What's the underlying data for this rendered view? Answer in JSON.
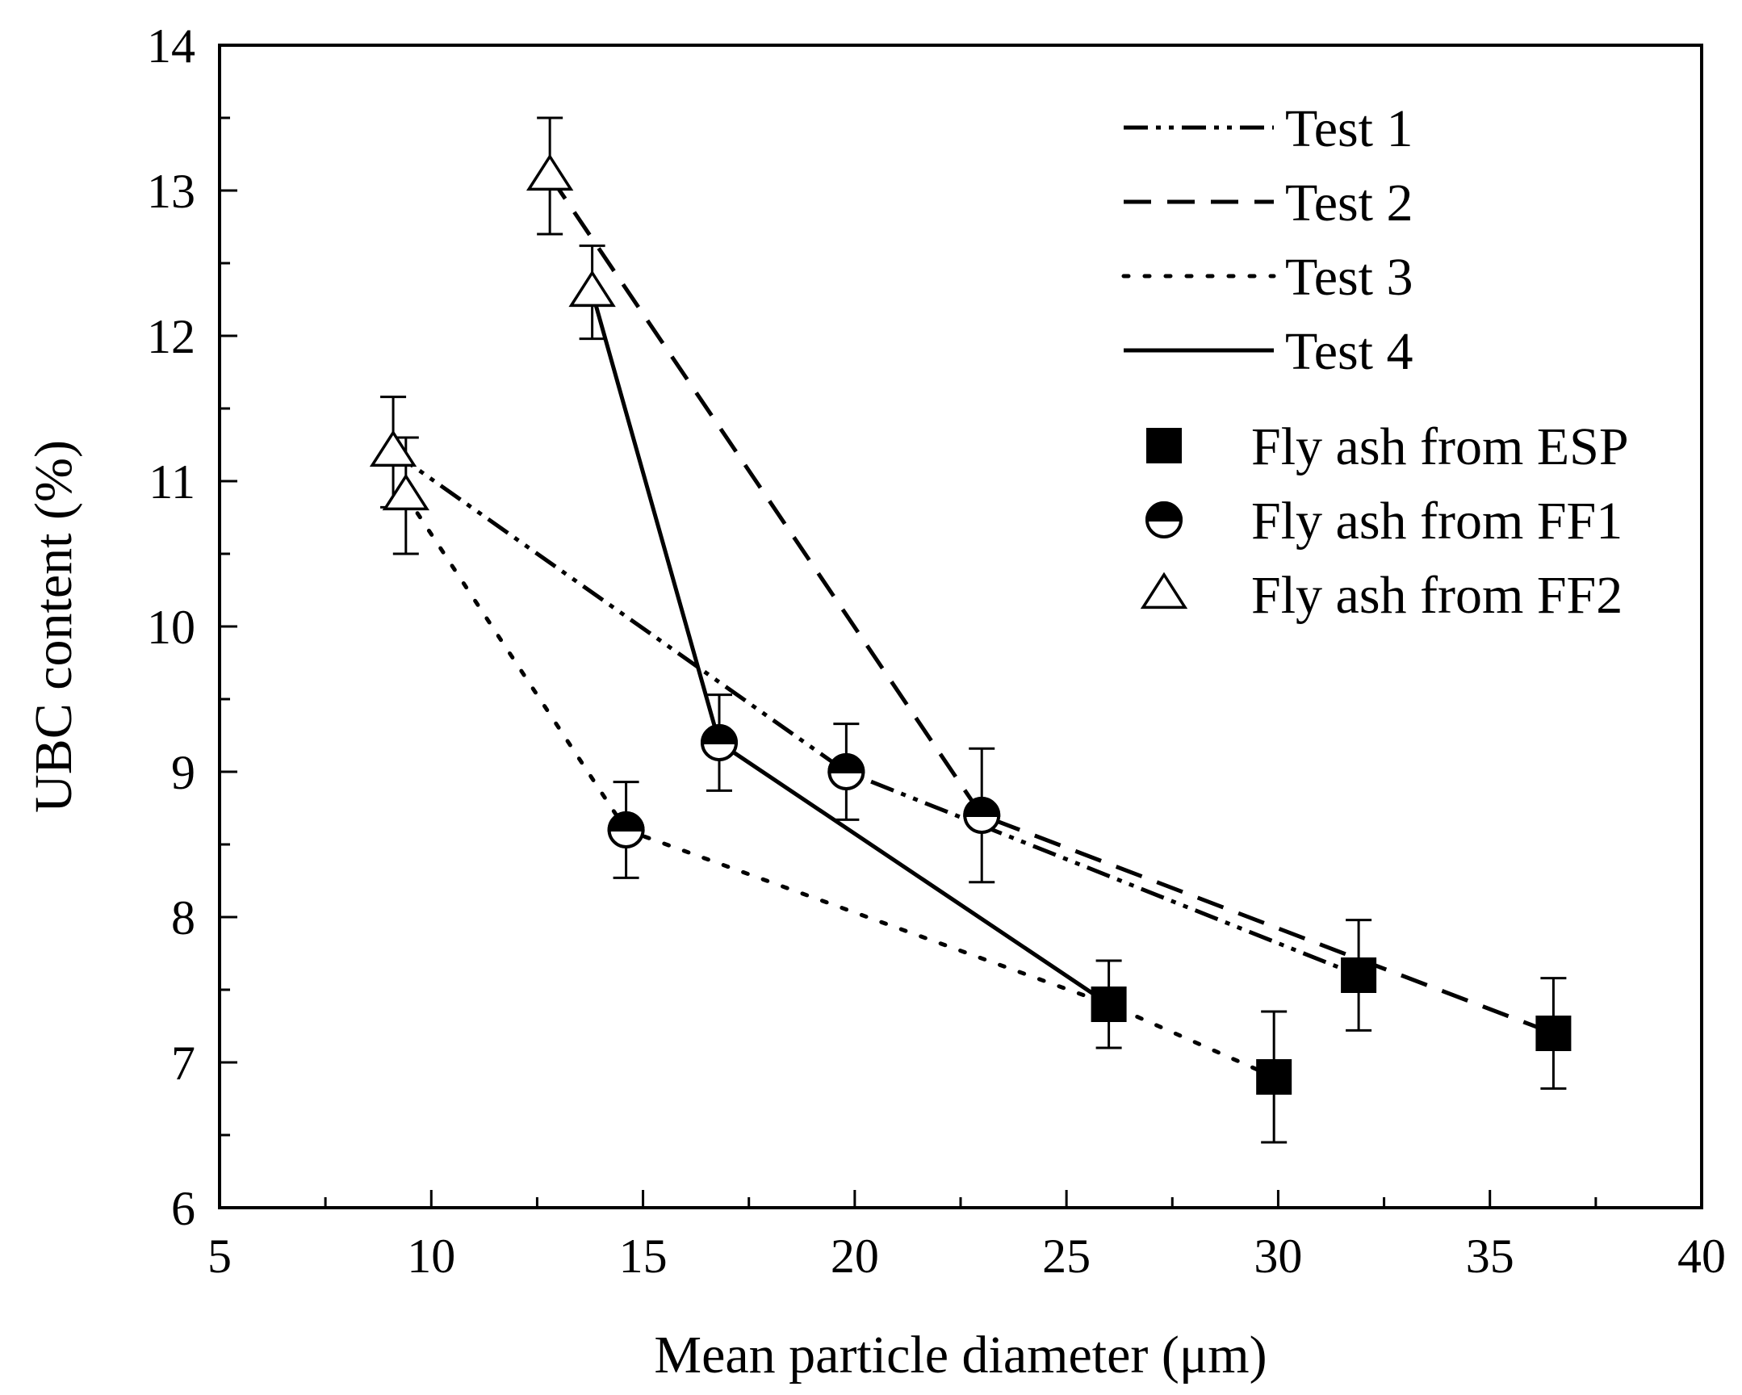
{
  "chart_data": {
    "type": "line",
    "title": "",
    "xlabel": "Mean particle diameter (μm)",
    "ylabel": "UBC content (%)",
    "xlim": [
      5,
      40
    ],
    "ylim": [
      6,
      14
    ],
    "x_ticks": [
      5,
      10,
      15,
      20,
      25,
      30,
      35,
      40
    ],
    "y_ticks": [
      6,
      7,
      8,
      9,
      10,
      11,
      12,
      13,
      14
    ],
    "x_tick_labels": [
      "5",
      "10",
      "15",
      "20",
      "25",
      "30",
      "35",
      "40"
    ],
    "y_tick_labels": [
      "6",
      "7",
      "8",
      "9",
      "10",
      "11",
      "12",
      "13",
      "14"
    ],
    "legend_position": "top-right",
    "series": [
      {
        "name": "Test 1",
        "style": "dash-dot-dot",
        "x": [
          9.1,
          19.8,
          31.9
        ],
        "y": [
          11.2,
          9.0,
          7.6
        ]
      },
      {
        "name": "Test 2",
        "style": "dashed",
        "x": [
          12.8,
          23.0,
          36.5
        ],
        "y": [
          13.1,
          8.7,
          7.2
        ]
      },
      {
        "name": "Test 3",
        "style": "dotted",
        "x": [
          9.4,
          14.6,
          26.0,
          29.9
        ],
        "y": [
          10.9,
          8.6,
          7.4,
          6.9
        ]
      },
      {
        "name": "Test 4",
        "style": "solid",
        "x": [
          13.8,
          16.8,
          26.0
        ],
        "y": [
          12.3,
          9.2,
          7.4
        ]
      }
    ],
    "markers": [
      {
        "name": "Fly ash from ESP",
        "symbol": "square",
        "points": [
          {
            "x": 26.0,
            "y": 7.4,
            "err": 0.3
          },
          {
            "x": 29.9,
            "y": 6.9,
            "err": 0.45
          },
          {
            "x": 31.9,
            "y": 7.6,
            "err": 0.38
          },
          {
            "x": 36.5,
            "y": 7.2,
            "err": 0.38
          }
        ]
      },
      {
        "name": "Fly ash from FF1",
        "symbol": "half-circle",
        "points": [
          {
            "x": 14.6,
            "y": 8.6,
            "err": 0.33
          },
          {
            "x": 16.8,
            "y": 9.2,
            "err": 0.33
          },
          {
            "x": 19.8,
            "y": 9.0,
            "err": 0.33
          },
          {
            "x": 23.0,
            "y": 8.7,
            "err": 0.46
          }
        ]
      },
      {
        "name": "Fly ash from FF2",
        "symbol": "triangle",
        "points": [
          {
            "x": 9.1,
            "y": 11.2,
            "err": 0.38
          },
          {
            "x": 9.4,
            "y": 10.9,
            "err": 0.4
          },
          {
            "x": 12.8,
            "y": 13.1,
            "err": 0.4
          },
          {
            "x": 13.8,
            "y": 12.3,
            "err": 0.32
          }
        ]
      }
    ]
  }
}
